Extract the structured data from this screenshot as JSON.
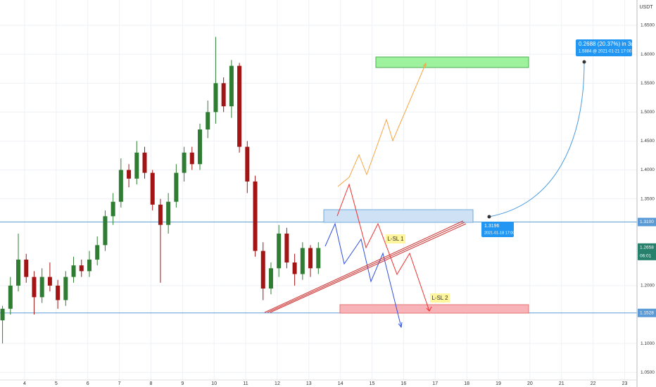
{
  "chart_data": {
    "type": "candlestick",
    "currency": "USDT",
    "x": [
      3.3,
      3.55,
      3.8,
      4.05,
      4.3,
      4.55,
      4.8,
      5.05,
      5.3,
      5.55,
      5.8,
      6.05,
      6.3,
      6.55,
      6.8,
      7.05,
      7.3,
      7.55,
      7.8,
      8.05,
      8.3,
      8.55,
      8.8,
      9.05,
      9.3,
      9.55,
      9.8,
      10.05,
      10.3,
      10.55,
      10.8,
      11.05,
      11.3,
      11.55,
      11.8,
      12.05,
      12.3,
      12.55,
      12.8,
      13.05,
      13.3
    ],
    "open": [
      1.14,
      1.16,
      1.2,
      1.245,
      1.215,
      1.18,
      1.215,
      1.2,
      1.175,
      1.215,
      1.235,
      1.225,
      1.245,
      1.27,
      1.32,
      1.345,
      1.4,
      1.385,
      1.43,
      1.395,
      1.34,
      1.305,
      1.345,
      1.395,
      1.43,
      1.41,
      1.47,
      1.5,
      1.55,
      1.51,
      1.58,
      1.44,
      1.38,
      1.26,
      1.195,
      1.23,
      1.29,
      1.24,
      1.22,
      1.265,
      1.23
    ],
    "high": [
      1.165,
      1.215,
      1.29,
      1.255,
      1.225,
      1.23,
      1.24,
      1.21,
      1.225,
      1.25,
      1.245,
      1.26,
      1.285,
      1.33,
      1.36,
      1.42,
      1.41,
      1.45,
      1.44,
      1.4,
      1.35,
      1.36,
      1.41,
      1.44,
      1.44,
      1.48,
      1.52,
      1.63,
      1.56,
      1.59,
      1.585,
      1.45,
      1.39,
      1.275,
      1.24,
      1.305,
      1.3,
      1.255,
      1.275,
      1.27,
      1.275
    ],
    "low": [
      1.1,
      1.15,
      1.19,
      1.205,
      1.15,
      1.17,
      1.19,
      1.16,
      1.165,
      1.205,
      1.215,
      1.215,
      1.235,
      1.26,
      1.305,
      1.335,
      1.37,
      1.375,
      1.385,
      1.33,
      1.205,
      1.29,
      1.335,
      1.38,
      1.4,
      1.4,
      1.455,
      1.48,
      1.5,
      1.49,
      1.43,
      1.36,
      1.25,
      1.175,
      1.185,
      1.215,
      1.23,
      1.2,
      1.21,
      1.215,
      1.22
    ],
    "close": [
      1.16,
      1.2,
      1.245,
      1.215,
      1.18,
      1.215,
      1.2,
      1.175,
      1.215,
      1.235,
      1.225,
      1.245,
      1.27,
      1.32,
      1.345,
      1.4,
      1.385,
      1.43,
      1.395,
      1.34,
      1.305,
      1.345,
      1.395,
      1.43,
      1.41,
      1.47,
      1.5,
      1.55,
      1.51,
      1.58,
      1.44,
      1.38,
      1.26,
      1.195,
      1.23,
      1.29,
      1.24,
      1.22,
      1.265,
      1.23,
      1.265
    ],
    "up_color": "#2e7d32",
    "down_color": "#a31515",
    "xlim": [
      3.22,
      23.39
    ],
    "xticks": [
      4,
      5,
      6,
      7,
      8,
      9,
      10,
      11,
      12,
      13,
      14,
      15,
      16,
      17,
      18,
      19,
      20,
      21,
      22,
      23
    ],
    "ylim": [
      1.0369,
      1.6938
    ],
    "yticks": [
      {
        "value": 1.65,
        "label": "1.6500"
      },
      {
        "value": 1.6,
        "label": "1.6000"
      },
      {
        "value": 1.55,
        "label": "1.5500"
      },
      {
        "value": 1.5,
        "label": "1.5000"
      },
      {
        "value": 1.45,
        "label": "1.4500"
      },
      {
        "value": 1.4,
        "label": "1.4000"
      },
      {
        "value": 1.35,
        "label": "1.3500"
      },
      {
        "value": 1.2,
        "label": "1.2000"
      },
      {
        "value": 1.1,
        "label": "1.1000"
      },
      {
        "value": 1.05,
        "label": "1.0500"
      }
    ],
    "grid": true,
    "hlines": [
      {
        "value": 1.31,
        "label": "1.3100",
        "color": "#5b9bd5"
      },
      {
        "value": 1.1528,
        "label": "1.1528",
        "color": "#5b9bd5"
      }
    ],
    "last_price": 1.2658,
    "countdown": "06:01",
    "annotations": {
      "sl1": "L-SL 1",
      "sl2": "L-SL 2",
      "measure_top": "0.2688 (20.37%) in 3d",
      "measure_sub": "1.5884 @ 2021-01-21  17:00",
      "point_price": "1.3196",
      "point_date": "2021-01-18  17:00"
    }
  }
}
